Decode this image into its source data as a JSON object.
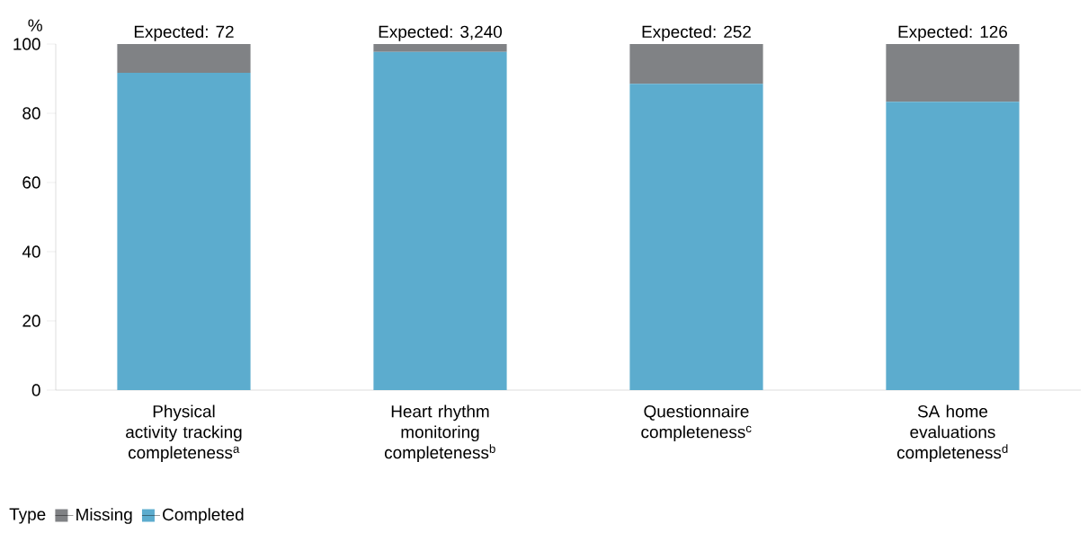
{
  "chart_data": {
    "type": "bar",
    "stacked": true,
    "ylabel": "%",
    "legend_title": "Type",
    "legend": "bottom left",
    "categories": [
      "Physical activity tracking completeness$^{a}$",
      "Heart rhythm monitoring completeness$^{b}$",
      "Questionnaire completeness$^{c}$",
      "SA home evaluations completeness$^{d}$"
    ],
    "series": [
      {
        "name": "Completed",
        "color": "#5cacce",
        "values": [
          91.7,
          97.7,
          88.5,
          83.3
        ]
      },
      {
        "name": "Missing",
        "color": "#808285",
        "values": [
          8.3,
          2.3,
          11.5,
          16.7
        ]
      }
    ],
    "ylim": [
      0,
      100
    ],
    "yticks": [
      0,
      20,
      40,
      60,
      80,
      100
    ],
    "annotations": [
      {
        "text": "Expected: 72",
        "x": "Physical activity tracking completeness$^{a}$",
        "y": 100
      },
      {
        "text": "Expected: 3,240",
        "x": "Heart rhythm monitoring completeness$^{b}$",
        "y": 100
      },
      {
        "text": "Expected: 252",
        "x": "Questionnaire completeness$^{c}$",
        "y": 100
      },
      {
        "text": "Expected: 126",
        "x": "SA home evaluations completeness$^{d}$",
        "y": 100
      }
    ]
  }
}
